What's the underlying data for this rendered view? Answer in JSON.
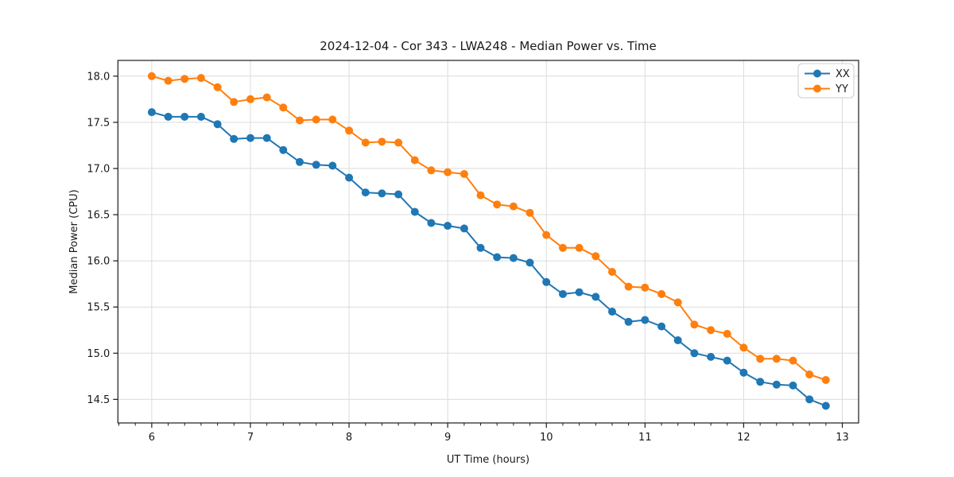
{
  "chart_data": {
    "type": "line",
    "title": "2024-12-04 - Cor 343 - LWA248 - Median Power vs. Time",
    "xlabel": "UT Time (hours)",
    "ylabel": "Median Power (CPU)",
    "xlim": [
      5.657,
      13.165
    ],
    "ylim": [
      14.245,
      18.17
    ],
    "x_ticks": [
      6,
      7,
      8,
      9,
      10,
      11,
      12,
      13
    ],
    "y_ticks": [
      14.5,
      15.0,
      15.5,
      16.0,
      16.5,
      17.0,
      17.5,
      18.0
    ],
    "x_minor_tick_step": 0.16667,
    "grid": true,
    "grid_color": "#dcdcdc",
    "legend_position": "upper right",
    "marker": "o",
    "x": [
      6.0,
      6.167,
      6.333,
      6.5,
      6.667,
      6.833,
      7.0,
      7.167,
      7.333,
      7.5,
      7.667,
      7.833,
      8.0,
      8.167,
      8.333,
      8.5,
      8.667,
      8.833,
      9.0,
      9.167,
      9.333,
      9.5,
      9.667,
      9.833,
      10.0,
      10.167,
      10.333,
      10.5,
      10.667,
      10.833,
      11.0,
      11.167,
      11.333,
      11.5,
      11.667,
      11.833,
      12.0,
      12.167,
      12.333,
      12.5,
      12.667,
      12.833
    ],
    "series": [
      {
        "name": "XX",
        "color": "#1f77b4",
        "values": [
          17.61,
          17.56,
          17.56,
          17.56,
          17.48,
          17.32,
          17.33,
          17.33,
          17.2,
          17.07,
          17.04,
          17.03,
          16.9,
          16.74,
          16.73,
          16.72,
          16.53,
          16.41,
          16.38,
          16.35,
          16.14,
          16.04,
          16.03,
          15.98,
          15.77,
          15.64,
          15.66,
          15.61,
          15.45,
          15.34,
          15.36,
          15.29,
          15.14,
          15.0,
          14.96,
          14.92,
          14.79,
          14.69,
          14.66,
          14.65,
          14.5,
          14.43
        ]
      },
      {
        "name": "YY",
        "color": "#ff7f0e",
        "values": [
          18.0,
          17.95,
          17.97,
          17.98,
          17.88,
          17.72,
          17.75,
          17.77,
          17.66,
          17.52,
          17.53,
          17.53,
          17.41,
          17.28,
          17.29,
          17.28,
          17.09,
          16.98,
          16.96,
          16.94,
          16.71,
          16.61,
          16.59,
          16.52,
          16.28,
          16.14,
          16.14,
          16.05,
          15.88,
          15.72,
          15.71,
          15.64,
          15.55,
          15.31,
          15.25,
          15.21,
          15.06,
          14.94,
          14.94,
          14.92,
          14.77,
          14.71
        ]
      }
    ]
  }
}
